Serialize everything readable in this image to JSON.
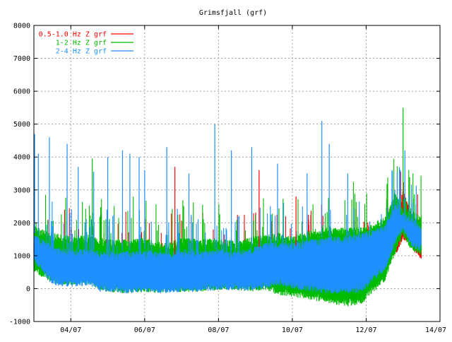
{
  "chart_data": {
    "type": "line",
    "title": "Grimsfjall (grf)",
    "xlabel": "",
    "ylabel": "",
    "ylim": [
      -1000,
      8000
    ],
    "yticks": [
      -1000,
      0,
      1000,
      2000,
      3000,
      4000,
      5000,
      6000,
      7000,
      8000
    ],
    "xticks": [
      {
        "label": "04/07",
        "day": 3
      },
      {
        "label": "06/07",
        "day": 5
      },
      {
        "label": "08/07",
        "day": 7
      },
      {
        "label": "10/07",
        "day": 9
      },
      {
        "label": "12/07",
        "day": 11
      },
      {
        "label": "14/07",
        "day": 13
      }
    ],
    "xlim_days": [
      2.0,
      13.0
    ],
    "grid": true,
    "legend_position": "top-left",
    "series": [
      {
        "name": "0.5-1.0 Hz Z grf",
        "color": "#ff0000",
        "x_days": [
          2.0,
          2.5,
          3.0,
          3.5,
          3.8,
          4.0,
          4.5,
          5.0,
          5.5,
          6.0,
          6.5,
          7.0,
          7.5,
          8.0,
          8.3,
          8.6,
          9.0,
          9.5,
          10.0,
          10.5,
          10.9,
          11.2,
          11.5,
          11.8,
          12.0,
          12.2,
          12.5
        ],
        "base": [
          800,
          500,
          450,
          500,
          350,
          350,
          300,
          350,
          300,
          350,
          300,
          400,
          350,
          400,
          350,
          200,
          400,
          450,
          550,
          550,
          500,
          500,
          750,
          1000,
          1500,
          1300,
          800
        ],
        "top": [
          1500,
          1300,
          1200,
          1250,
          1100,
          1100,
          1100,
          1100,
          1000,
          1050,
          1100,
          1100,
          1100,
          1250,
          1300,
          1300,
          1300,
          1300,
          1400,
          1250,
          1400,
          1500,
          1600,
          2300,
          3000,
          2400,
          1400
        ]
      },
      {
        "name": "1-2 Hz Z grf",
        "color": "#00bb00",
        "x_days": [
          2.0,
          2.5,
          3.0,
          3.5,
          3.8,
          4.0,
          4.5,
          5.0,
          5.5,
          6.0,
          6.5,
          7.0,
          7.5,
          8.0,
          8.3,
          8.6,
          9.0,
          9.5,
          10.0,
          10.5,
          10.9,
          11.2,
          11.5,
          11.8,
          12.0,
          12.2,
          12.5
        ],
        "base": [
          500,
          150,
          100,
          150,
          -50,
          -100,
          -150,
          -100,
          -150,
          -100,
          -100,
          -50,
          -50,
          -100,
          -50,
          -200,
          -250,
          -350,
          -450,
          -550,
          -450,
          -100,
          200,
          1100,
          1600,
          1200,
          1000
        ],
        "top": [
          1900,
          1700,
          1600,
          1650,
          1550,
          1500,
          1500,
          1550,
          1400,
          1550,
          1500,
          1550,
          1450,
          1600,
          1650,
          1700,
          1600,
          1800,
          1900,
          1850,
          1900,
          2000,
          2200,
          2900,
          2500,
          2400,
          2200
        ]
      },
      {
        "name": "2-4 Hz Z grf",
        "color": "#1e90ff",
        "x_days": [
          2.0,
          2.5,
          3.0,
          3.5,
          3.8,
          4.0,
          4.5,
          5.0,
          5.5,
          6.0,
          6.5,
          7.0,
          7.5,
          8.0,
          8.3,
          8.6,
          9.0,
          9.5,
          10.0,
          10.5,
          10.9,
          11.2,
          11.5,
          11.8,
          12.0,
          12.2,
          12.5
        ],
        "base": [
          800,
          100,
          50,
          100,
          -100,
          -100,
          -150,
          -100,
          -150,
          -100,
          -100,
          -50,
          -50,
          -50,
          0,
          100,
          0,
          -100,
          -150,
          -150,
          -100,
          250,
          500,
          1400,
          1750,
          1300,
          1100
        ],
        "top": [
          1700,
          1300,
          1200,
          1200,
          1150,
          1150,
          1150,
          1200,
          1100,
          1200,
          1150,
          1200,
          1150,
          1300,
          1400,
          1400,
          1400,
          1500,
          1600,
          1600,
          1700,
          1800,
          1950,
          2600,
          2300,
          2200,
          1900
        ]
      }
    ],
    "spikes": [
      {
        "series": 2,
        "x_day": 2.02,
        "y": 4700
      },
      {
        "series": 2,
        "x_day": 2.12,
        "y": 4100
      },
      {
        "series": 2,
        "x_day": 2.42,
        "y": 4600
      },
      {
        "series": 2,
        "x_day": 2.9,
        "y": 4400
      },
      {
        "series": 2,
        "x_day": 3.2,
        "y": 3700
      },
      {
        "series": 1,
        "x_day": 3.58,
        "y": 3950
      },
      {
        "series": 2,
        "x_day": 3.62,
        "y": 3550
      },
      {
        "series": 2,
        "x_day": 4.0,
        "y": 4000
      },
      {
        "series": 2,
        "x_day": 4.4,
        "y": 4200
      },
      {
        "series": 2,
        "x_day": 4.6,
        "y": 4100
      },
      {
        "series": 2,
        "x_day": 4.85,
        "y": 4000
      },
      {
        "series": 2,
        "x_day": 5.0,
        "y": 3600
      },
      {
        "series": 2,
        "x_day": 5.6,
        "y": 4300
      },
      {
        "series": 0,
        "x_day": 5.82,
        "y": 3700
      },
      {
        "series": 2,
        "x_day": 6.2,
        "y": 3500
      },
      {
        "series": 2,
        "x_day": 6.9,
        "y": 5000
      },
      {
        "series": 2,
        "x_day": 7.35,
        "y": 4200
      },
      {
        "series": 2,
        "x_day": 7.9,
        "y": 4300
      },
      {
        "series": 0,
        "x_day": 8.1,
        "y": 3600
      },
      {
        "series": 2,
        "x_day": 8.6,
        "y": 3800
      },
      {
        "series": 0,
        "x_day": 9.1,
        "y": 2800
      },
      {
        "series": 2,
        "x_day": 9.4,
        "y": 3500
      },
      {
        "series": 2,
        "x_day": 9.8,
        "y": 5100
      },
      {
        "series": 2,
        "x_day": 10.0,
        "y": 4400
      },
      {
        "series": 2,
        "x_day": 10.5,
        "y": 3500
      },
      {
        "series": 2,
        "x_day": 11.7,
        "y": 3600
      },
      {
        "series": 1,
        "x_day": 12.0,
        "y": 5500
      },
      {
        "series": 2,
        "x_day": 12.05,
        "y": 4200
      }
    ]
  }
}
